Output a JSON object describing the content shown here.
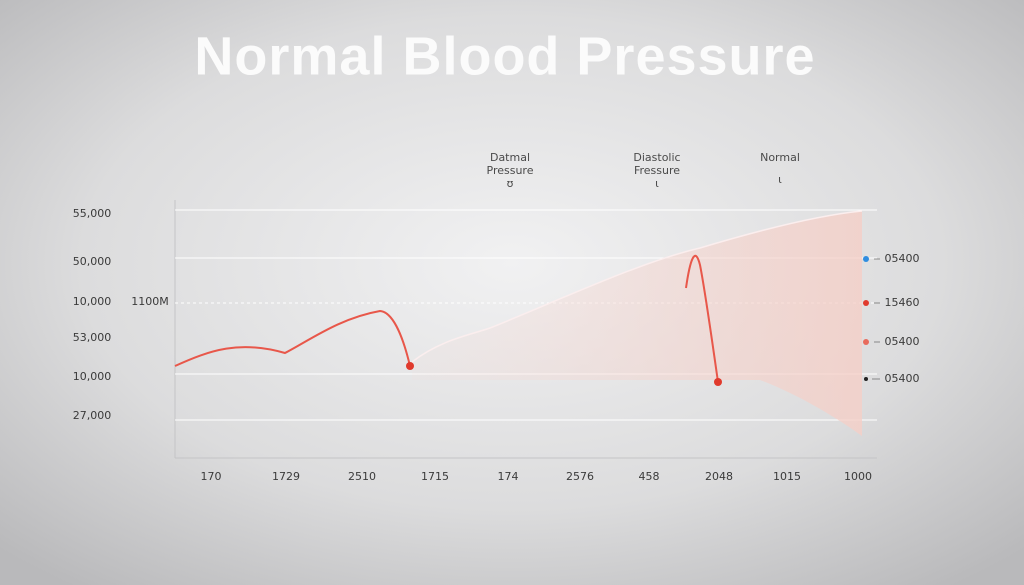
{
  "title": "Normal Blood Pressure",
  "column_labels": [
    [
      "Datmal",
      "Pressure",
      "ʊ"
    ],
    [
      "Diastolic",
      "Fressure",
      "ι"
    ],
    [
      "Normal",
      "ɩ"
    ]
  ],
  "y_labels": [
    "55,000",
    "50,000",
    "10,000",
    "53,000",
    "10,000",
    "27,000"
  ],
  "reference_label": "1100M",
  "x_labels": [
    "170",
    "1729",
    "2510",
    "1715",
    "174",
    "2576",
    "458",
    "2048",
    "1015",
    "1000"
  ],
  "right_labels": [
    "05400",
    "15460",
    "05400",
    "05400"
  ]
}
